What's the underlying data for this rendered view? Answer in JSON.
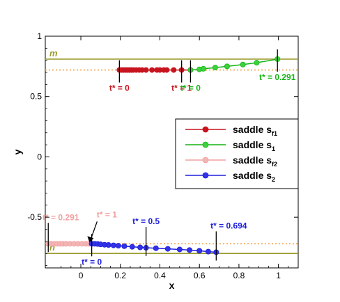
{
  "chart_data": {
    "type": "line",
    "xlabel": "x",
    "ylabel": "y",
    "xlim": [
      -0.18,
      1.1
    ],
    "ylim": [
      -0.92,
      1.0
    ],
    "x_ticks": [
      "0",
      "0.2",
      "0.4",
      "0.6",
      "0.8",
      "1"
    ],
    "y_ticks": [
      "-0.5",
      "0",
      "0.5",
      "1"
    ],
    "x_tick_values": [
      0,
      0.2,
      0.4,
      0.6,
      0.8,
      1.0
    ],
    "y_tick_values": [
      -0.5,
      0,
      0.5,
      1.0
    ],
    "reference_lines": [
      {
        "label": "m",
        "y": 0.81,
        "style": "solid",
        "color": "#9b9b2e"
      },
      {
        "label": "",
        "y": 0.72,
        "style": "dotted",
        "color": "#f5a142"
      },
      {
        "label": "n",
        "y": -0.8,
        "style": "solid",
        "color": "#9b9b2e"
      },
      {
        "label": "",
        "y": -0.72,
        "style": "dotted",
        "color": "#f5a142"
      }
    ],
    "series": [
      {
        "name": "saddle s",
        "subscript": "f1",
        "color": "#c8141e",
        "fill": "#c8141e",
        "points": [
          [
            0.195,
            0.72
          ],
          [
            0.205,
            0.72
          ],
          [
            0.215,
            0.72
          ],
          [
            0.225,
            0.72
          ],
          [
            0.235,
            0.72
          ],
          [
            0.245,
            0.72
          ],
          [
            0.255,
            0.72
          ],
          [
            0.265,
            0.72
          ],
          [
            0.28,
            0.72
          ],
          [
            0.295,
            0.72
          ],
          [
            0.31,
            0.72
          ],
          [
            0.33,
            0.72
          ],
          [
            0.36,
            0.72
          ],
          [
            0.385,
            0.72
          ],
          [
            0.4,
            0.72
          ],
          [
            0.42,
            0.72
          ],
          [
            0.435,
            0.72
          ],
          [
            0.47,
            0.72
          ],
          [
            0.51,
            0.72
          ],
          [
            0.555,
            0.72
          ]
        ]
      },
      {
        "name": "saddle s",
        "subscript": "1",
        "color": "#14b414",
        "fill": "#3cd23c",
        "points": [
          [
            0.555,
            0.72
          ],
          [
            0.6,
            0.725
          ],
          [
            0.62,
            0.73
          ],
          [
            0.68,
            0.74
          ],
          [
            0.74,
            0.75
          ],
          [
            0.82,
            0.765
          ],
          [
            0.89,
            0.78
          ],
          [
            0.995,
            0.81
          ]
        ]
      },
      {
        "name": "saddle s",
        "subscript": "f2",
        "color": "#f0a0a0",
        "fill": "#f4b4b4",
        "points": [
          [
            -0.165,
            -0.72
          ],
          [
            -0.15,
            -0.72
          ],
          [
            -0.135,
            -0.72
          ],
          [
            -0.12,
            -0.72
          ],
          [
            -0.105,
            -0.72
          ],
          [
            -0.09,
            -0.72
          ],
          [
            -0.075,
            -0.72
          ],
          [
            -0.055,
            -0.72
          ],
          [
            -0.035,
            -0.72
          ],
          [
            -0.015,
            -0.72
          ],
          [
            0.005,
            -0.72
          ],
          [
            0.025,
            -0.72
          ],
          [
            0.04,
            -0.72
          ],
          [
            0.055,
            -0.72
          ]
        ]
      },
      {
        "name": "saddle s",
        "subscript": "2",
        "color": "#1e1edc",
        "fill": "#3232e6",
        "points": [
          [
            0.055,
            -0.72
          ],
          [
            0.07,
            -0.72
          ],
          [
            0.085,
            -0.722
          ],
          [
            0.1,
            -0.725
          ],
          [
            0.12,
            -0.728
          ],
          [
            0.14,
            -0.73
          ],
          [
            0.165,
            -0.733
          ],
          [
            0.19,
            -0.736
          ],
          [
            0.22,
            -0.74
          ],
          [
            0.26,
            -0.745
          ],
          [
            0.3,
            -0.75
          ],
          [
            0.33,
            -0.753
          ],
          [
            0.38,
            -0.757
          ],
          [
            0.44,
            -0.762
          ],
          [
            0.5,
            -0.767
          ],
          [
            0.55,
            -0.772
          ],
          [
            0.6,
            -0.778
          ],
          [
            0.645,
            -0.785
          ],
          [
            0.685,
            -0.79
          ]
        ]
      }
    ],
    "annotations": [
      {
        "text": "t* = 0",
        "color": "#c8141e",
        "x": 0.195,
        "y": 0.72,
        "pos": "below"
      },
      {
        "text": "t* = 1",
        "color": "#c8141e",
        "x": 0.51,
        "y": 0.72,
        "pos": "below"
      },
      {
        "text": "t* = 0",
        "color": "#14b414",
        "x": 0.555,
        "y": 0.72,
        "pos": "below"
      },
      {
        "text": "t* = 0.291",
        "color": "#14b414",
        "x": 0.995,
        "y": 0.81,
        "pos": "below"
      },
      {
        "text": "t* = 0.291",
        "color": "#f0a0a0",
        "x": -0.165,
        "y": -0.72,
        "pos": "above"
      },
      {
        "text": "t* = 1",
        "color": "#f0a0a0",
        "x": 0.04,
        "y": -0.72,
        "pos": "above-arrow"
      },
      {
        "text": "t* = 0",
        "color": "#1e1edc",
        "x": 0.055,
        "y": -0.72,
        "pos": "below"
      },
      {
        "text": "t* = 0.5",
        "color": "#1e1edc",
        "x": 0.33,
        "y": -0.753,
        "pos": "above"
      },
      {
        "text": "t* = 0.694",
        "color": "#1e1edc",
        "x": 0.685,
        "y": -0.79,
        "pos": "above"
      }
    ],
    "legend_position": "right"
  }
}
